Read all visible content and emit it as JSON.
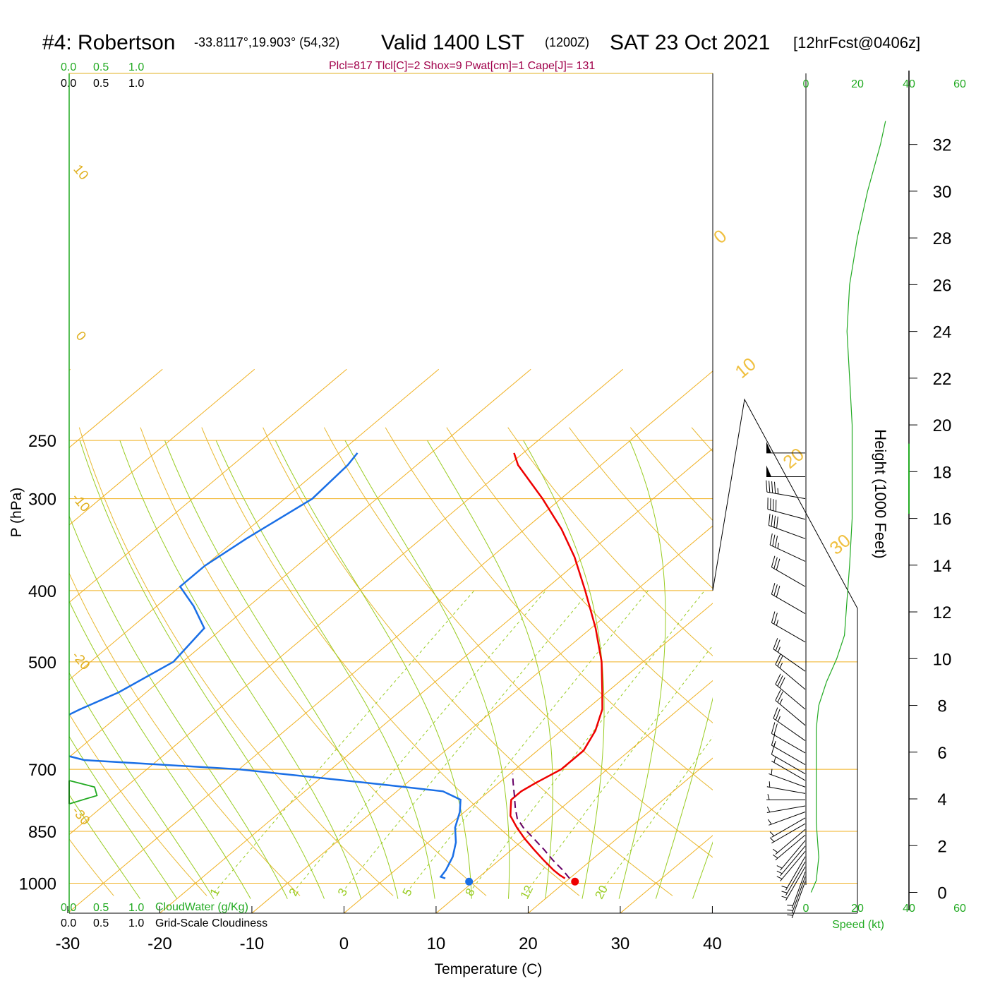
{
  "header": {
    "station": "#4: Robertson",
    "coords": "-33.8117°,19.903° (54,32)",
    "valid": "Valid 1400 LST",
    "zulu": "(1200Z)",
    "date": "SAT 23 Oct 2021",
    "forecast": "[12hrFcst@0406z]"
  },
  "params": "Plcl=817 Tlcl[C]=2 Shox=9 Pwat[cm]=1 Cape[J]= 131",
  "top_scales": {
    "cloudwater_ticks": [
      "0.0",
      "0.5",
      "1.0"
    ],
    "cloudiness_ticks": [
      "0.0",
      "0.5",
      "1.0"
    ]
  },
  "bottom_scales": {
    "cloudwater_ticks": [
      "0.0",
      "0.5",
      "1.0"
    ],
    "cloudwater_label": "CloudWater (g/Kg)",
    "cloudiness_ticks": [
      "0.0",
      "0.5",
      "1.0"
    ],
    "cloudiness_label": "Grid-Scale Cloudiness"
  },
  "speed_axis": {
    "ticks": [
      "0",
      "20",
      "40",
      "60"
    ],
    "label": "Speed (kt)"
  },
  "colors": {
    "temperature": "#ee0000",
    "dewpoint": "#1a6fe6",
    "parcel": "#660066",
    "isotherm": "#f0b020",
    "dry_adiabat": "#e8b830",
    "moist_adiabat": "#99cc22",
    "mixing_ratio": "#99cc22",
    "cloud": "#22aa22",
    "speed": "#22aa22"
  },
  "chart_data": {
    "type": "skew-T log-P sounding",
    "xlabel": "Temperature (C)",
    "ylabel": "P (hPa)",
    "y2label": "Height (1000 Feet)",
    "x_ticks": [
      -30,
      -20,
      -10,
      0,
      10,
      20,
      30,
      40
    ],
    "p_ticks": [
      250,
      300,
      400,
      500,
      700,
      850,
      1000
    ],
    "height_ticks_kft": [
      0,
      2,
      4,
      6,
      8,
      10,
      12,
      14,
      16,
      18,
      20,
      22,
      24,
      26,
      28,
      30,
      32
    ],
    "plim_hpa": [
      250,
      1030
    ],
    "isotherm_labels": [
      {
        "t": -30,
        "text": "-30"
      },
      {
        "t": -20,
        "text": "-20"
      },
      {
        "t": -10,
        "text": "-10"
      },
      {
        "t": 0,
        "text": "0"
      },
      {
        "t": 10,
        "text": "10"
      }
    ],
    "dry_adiabat_labels": [
      {
        "t": 0,
        "text": "0"
      },
      {
        "t": 10,
        "text": "10"
      },
      {
        "t": 20,
        "text": "20"
      },
      {
        "t": 30,
        "text": "30"
      }
    ],
    "mixing_ratio_labels": [
      "1",
      "2",
      "3",
      "5",
      "8",
      "12",
      "20"
    ],
    "temperature_profile": [
      {
        "p": 985,
        "t": 19.5
      },
      {
        "p": 975,
        "t": 18.5
      },
      {
        "p": 960,
        "t": 17.2
      },
      {
        "p": 930,
        "t": 14.8
      },
      {
        "p": 900,
        "t": 12.4
      },
      {
        "p": 870,
        "t": 10.0
      },
      {
        "p": 840,
        "t": 7.7
      },
      {
        "p": 810,
        "t": 5.5
      },
      {
        "p": 790,
        "t": 4.5
      },
      {
        "p": 770,
        "t": 3.5
      },
      {
        "p": 750,
        "t": 3.5
      },
      {
        "p": 730,
        "t": 4.0
      },
      {
        "p": 700,
        "t": 5.0
      },
      {
        "p": 660,
        "t": 5.0
      },
      {
        "p": 620,
        "t": 3.7
      },
      {
        "p": 580,
        "t": 1.7
      },
      {
        "p": 550,
        "t": -0.5
      },
      {
        "p": 500,
        "t": -4.5
      },
      {
        "p": 450,
        "t": -9.5
      },
      {
        "p": 400,
        "t": -15.5
      },
      {
        "p": 360,
        "t": -21.0
      },
      {
        "p": 330,
        "t": -26.0
      },
      {
        "p": 300,
        "t": -32.0
      },
      {
        "p": 270,
        "t": -39.0
      },
      {
        "p": 260,
        "t": -41.0
      }
    ],
    "dewpoint_profile": [
      {
        "p": 985,
        "t": 6.5
      },
      {
        "p": 980,
        "t": 5.8
      },
      {
        "p": 960,
        "t": 5.5
      },
      {
        "p": 920,
        "t": 4.5
      },
      {
        "p": 880,
        "t": 3.0
      },
      {
        "p": 840,
        "t": 1.0
      },
      {
        "p": 800,
        "t": -0.5
      },
      {
        "p": 770,
        "t": -2.0
      },
      {
        "p": 750,
        "t": -5.0
      },
      {
        "p": 735,
        "t": -12.0
      },
      {
        "p": 700,
        "t": -30.0
      },
      {
        "p": 680,
        "t": -48.0
      },
      {
        "p": 650,
        "t": -56.0
      },
      {
        "p": 620,
        "t": -57.0
      },
      {
        "p": 580,
        "t": -55.0
      },
      {
        "p": 550,
        "t": -53.0
      },
      {
        "p": 500,
        "t": -51.0
      },
      {
        "p": 450,
        "t": -52.0
      },
      {
        "p": 420,
        "t": -56.0
      },
      {
        "p": 395,
        "t": -60.0
      },
      {
        "p": 370,
        "t": -60.0
      },
      {
        "p": 340,
        "t": -59.0
      },
      {
        "p": 300,
        "t": -57.0
      },
      {
        "p": 270,
        "t": -57.5
      },
      {
        "p": 260,
        "t": -58.0
      }
    ],
    "parcel_profile": [
      {
        "p": 985,
        "t": 20.0
      },
      {
        "p": 960,
        "t": 18.2
      },
      {
        "p": 930,
        "t": 15.8
      },
      {
        "p": 900,
        "t": 13.5
      },
      {
        "p": 870,
        "t": 11.0
      },
      {
        "p": 840,
        "t": 8.4
      },
      {
        "p": 817,
        "t": 6.6
      },
      {
        "p": 790,
        "t": 5.0
      },
      {
        "p": 760,
        "t": 3.3
      },
      {
        "p": 730,
        "t": 1.5
      },
      {
        "p": 710,
        "t": 0.3
      }
    ],
    "surface_temperature": {
      "p": 995,
      "t": 21.0
    },
    "surface_dewpoint": {
      "p": 995,
      "t": 9.5
    },
    "cloud_fraction_profile": [
      {
        "p": 725,
        "v": 0.0
      },
      {
        "p": 740,
        "v": 0.75
      },
      {
        "p": 760,
        "v": 0.82
      },
      {
        "p": 780,
        "v": 0.0
      }
    ],
    "wind_barbs": [
      {
        "p": 260,
        "dir": 270,
        "kt": 50
      },
      {
        "p": 280,
        "dir": 270,
        "kt": 50
      },
      {
        "p": 300,
        "dir": 280,
        "kt": 45
      },
      {
        "p": 320,
        "dir": 285,
        "kt": 40
      },
      {
        "p": 340,
        "dir": 290,
        "kt": 40
      },
      {
        "p": 365,
        "dir": 295,
        "kt": 35
      },
      {
        "p": 395,
        "dir": 300,
        "kt": 30
      },
      {
        "p": 430,
        "dir": 300,
        "kt": 30
      },
      {
        "p": 470,
        "dir": 300,
        "kt": 25
      },
      {
        "p": 515,
        "dir": 305,
        "kt": 25
      },
      {
        "p": 545,
        "dir": 310,
        "kt": 25
      },
      {
        "p": 580,
        "dir": 310,
        "kt": 30
      },
      {
        "p": 610,
        "dir": 310,
        "kt": 25
      },
      {
        "p": 640,
        "dir": 305,
        "kt": 25
      },
      {
        "p": 665,
        "dir": 300,
        "kt": 20
      },
      {
        "p": 690,
        "dir": 300,
        "kt": 15
      },
      {
        "p": 710,
        "dir": 300,
        "kt": 10
      },
      {
        "p": 725,
        "dir": 300,
        "kt": 5
      },
      {
        "p": 740,
        "dir": 290,
        "kt": 5
      },
      {
        "p": 755,
        "dir": 280,
        "kt": 5
      },
      {
        "p": 770,
        "dir": 270,
        "kt": 5
      },
      {
        "p": 785,
        "dir": 260,
        "kt": 5
      },
      {
        "p": 800,
        "dir": 250,
        "kt": 5
      },
      {
        "p": 815,
        "dir": 240,
        "kt": 5
      },
      {
        "p": 830,
        "dir": 240,
        "kt": 5
      },
      {
        "p": 845,
        "dir": 230,
        "kt": 5
      },
      {
        "p": 860,
        "dir": 230,
        "kt": 5
      },
      {
        "p": 875,
        "dir": 220,
        "kt": 5
      },
      {
        "p": 890,
        "dir": 220,
        "kt": 5
      },
      {
        "p": 905,
        "dir": 220,
        "kt": 5
      },
      {
        "p": 920,
        "dir": 210,
        "kt": 5
      },
      {
        "p": 935,
        "dir": 210,
        "kt": 5
      },
      {
        "p": 950,
        "dir": 210,
        "kt": 5
      },
      {
        "p": 965,
        "dir": 200,
        "kt": 5
      },
      {
        "p": 980,
        "dir": 200,
        "kt": 5
      },
      {
        "p": 995,
        "dir": 200,
        "kt": 5
      }
    ],
    "speed_profile_by_height": [
      {
        "h": 0.0,
        "kt": 2
      },
      {
        "h": 0.5,
        "kt": 4
      },
      {
        "h": 1.5,
        "kt": 5
      },
      {
        "h": 3.0,
        "kt": 4
      },
      {
        "h": 5.0,
        "kt": 4
      },
      {
        "h": 7.0,
        "kt": 4
      },
      {
        "h": 8.0,
        "kt": 5
      },
      {
        "h": 9.0,
        "kt": 8
      },
      {
        "h": 10.0,
        "kt": 12
      },
      {
        "h": 11.0,
        "kt": 15
      },
      {
        "h": 12.5,
        "kt": 16
      },
      {
        "h": 14.0,
        "kt": 17
      },
      {
        "h": 16.0,
        "kt": 18
      },
      {
        "h": 18.0,
        "kt": 18
      },
      {
        "h": 20.0,
        "kt": 18
      },
      {
        "h": 22.0,
        "kt": 17
      },
      {
        "h": 24.0,
        "kt": 16
      },
      {
        "h": 26.0,
        "kt": 17
      },
      {
        "h": 28.0,
        "kt": 20
      },
      {
        "h": 30.0,
        "kt": 24
      },
      {
        "h": 32.0,
        "kt": 29
      },
      {
        "h": 33.0,
        "kt": 31
      }
    ]
  }
}
